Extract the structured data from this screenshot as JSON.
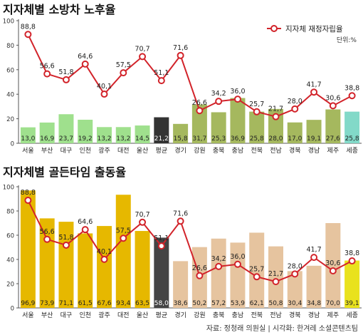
{
  "colors": {
    "line": "#d2232a",
    "axis": "#555555",
    "grid": "#dddddd",
    "top_bar_green": "#9fe08d",
    "top_bar_olive": "#a5b85e",
    "top_bar_teal": "#82d9c8",
    "top_bar_dark": "#333333",
    "bottom_bar_gold": "#e6b800",
    "bottom_bar_tan": "#e6c49f",
    "bottom_bar_yellow": "#e9e21d",
    "bottom_bar_dark": "#444444"
  },
  "footer": {
    "source": "자료: 정청래 의원실 | 시각화: 한겨레 소셜콘텐츠팀"
  },
  "chart_data": [
    {
      "type": "bar",
      "title": "지자체별 소방차 노후율",
      "legend": {
        "label": "지자체 재정자립율",
        "position": "top-right"
      },
      "unit": "단위:%",
      "categories": [
        "서울",
        "부산",
        "대구",
        "인천",
        "광주",
        "대전",
        "울산",
        "평균",
        "경기",
        "강원",
        "충북",
        "충남",
        "전북",
        "전남",
        "경북",
        "경남",
        "제주",
        "세종"
      ],
      "ylim": [
        0,
        100
      ],
      "yticks": [
        0,
        20,
        40,
        60,
        80,
        100
      ],
      "grid": false,
      "bar_values": [
        13.0,
        16.9,
        23.7,
        19.2,
        13.2,
        13.2,
        14.5,
        21.2,
        15.8,
        31.7,
        25.3,
        36.9,
        25.8,
        28.0,
        17.0,
        19.1,
        27.6,
        25.8
      ],
      "bar_colors": [
        "top_bar_green",
        "top_bar_green",
        "top_bar_green",
        "top_bar_green",
        "top_bar_green",
        "top_bar_green",
        "top_bar_green",
        "top_bar_dark",
        "top_bar_olive",
        "top_bar_olive",
        "top_bar_olive",
        "top_bar_olive",
        "top_bar_olive",
        "top_bar_olive",
        "top_bar_olive",
        "top_bar_olive",
        "top_bar_olive",
        "top_bar_teal"
      ],
      "line_label_values": [
        "88,8",
        "56,6",
        "51,8",
        "64,6",
        "40,1",
        "57,5",
        "70,7",
        "51,1",
        "71,6",
        "26,6",
        "34,2",
        "36,0",
        "25,7",
        "21,7",
        "28,0",
        "41,7",
        "30,6",
        "38,8"
      ],
      "line_values": [
        88.8,
        56.6,
        51.8,
        64.6,
        40.1,
        57.5,
        70.7,
        51.1,
        71.6,
        26.6,
        34.2,
        36.0,
        25.7,
        21.7,
        28.0,
        41.7,
        30.6,
        38.8
      ],
      "bar_label_values": [
        "13,0",
        "16,9",
        "23,7",
        "19,2",
        "13,2",
        "13,2",
        "14,5",
        "21,2",
        "15,8",
        "31,7",
        "25,3",
        "36,9",
        "25,8",
        "28,0",
        "17,0",
        "19,1",
        "27,6",
        "25,8"
      ]
    },
    {
      "type": "bar",
      "title": "지자체별 골든타임 출동율",
      "categories": [
        "서울",
        "부산",
        "대구",
        "인천",
        "광주",
        "대전",
        "울산",
        "평균",
        "경기",
        "강원",
        "충북",
        "충남",
        "전북",
        "전남",
        "경북",
        "경남",
        "제주",
        "세종"
      ],
      "ylim": [
        0,
        100
      ],
      "yticks": [
        0,
        20,
        40,
        60,
        80,
        100
      ],
      "grid": false,
      "bar_values": [
        96.9,
        73.9,
        71.1,
        61.5,
        67.6,
        93.4,
        63.5,
        58.0,
        38.6,
        50.2,
        57.2,
        53.9,
        62.1,
        50.8,
        30.4,
        34.8,
        70.0,
        39.1
      ],
      "bar_colors": [
        "bottom_bar_gold",
        "bottom_bar_gold",
        "bottom_bar_gold",
        "bottom_bar_gold",
        "bottom_bar_gold",
        "bottom_bar_gold",
        "bottom_bar_gold",
        "bottom_bar_dark",
        "bottom_bar_tan",
        "bottom_bar_tan",
        "bottom_bar_tan",
        "bottom_bar_tan",
        "bottom_bar_tan",
        "bottom_bar_tan",
        "bottom_bar_tan",
        "bottom_bar_tan",
        "bottom_bar_tan",
        "bottom_bar_yellow"
      ],
      "line_values": [
        88.8,
        56.6,
        51.8,
        64.6,
        40.1,
        57.5,
        70.7,
        51.1,
        71.6,
        26.6,
        34.2,
        36.0,
        25.7,
        21.7,
        28.0,
        41.7,
        30.6,
        38.8
      ],
      "line_label_values": [
        "88,8",
        "56,6",
        "51,8",
        "64,6",
        "40,1",
        "57,5",
        "70,7",
        "51,1",
        "71,6",
        "26,6",
        "34,2",
        "36,0",
        "25,7",
        "21,7",
        "28,0",
        "41,7",
        "30,6",
        "38,8"
      ],
      "bar_label_values": [
        "96,9",
        "73,9",
        "71,1",
        "61,5",
        "67,6",
        "93,4",
        "63,5",
        "58,0",
        "38,6",
        "50,2",
        "57,2",
        "53,9",
        "62,1",
        "50,8",
        "30,4",
        "34,8",
        "70,0",
        "39,1"
      ]
    }
  ]
}
